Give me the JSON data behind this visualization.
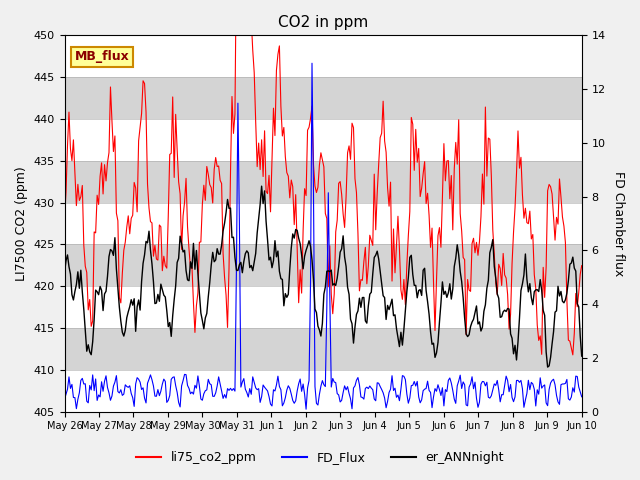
{
  "title": "CO2 in ppm",
  "ylabel_left": "LI7500 CO2 (ppm)",
  "ylabel_right": "FD Chamber flux",
  "ylim_left": [
    405,
    450
  ],
  "ylim_right": [
    0,
    14
  ],
  "yticks_left": [
    405,
    410,
    415,
    420,
    425,
    430,
    435,
    440,
    445,
    450
  ],
  "yticks_right": [
    0,
    2,
    4,
    6,
    8,
    10,
    12,
    14
  ],
  "xtick_labels": [
    "May 26",
    "May 27",
    "May 28",
    "May 29",
    "May 30",
    "May 31",
    "Jun 1",
    "Jun 2",
    "Jun 3",
    "Jun 4",
    "Jun 5",
    "Jun 6",
    "Jun 7",
    "Jun 8",
    "Jun 9",
    "Jun 10"
  ],
  "bg_color": "#f0f0f0",
  "plot_bg_color": "#e8e8e8",
  "line_colors": {
    "red": "#ff0000",
    "blue": "#0000ff",
    "black": "#000000"
  },
  "mb_flux_box": {
    "text": "MB_flux",
    "facecolor": "#ffff99",
    "edgecolor": "#cc8800"
  },
  "legend_entries": [
    "li75_co2_ppm",
    "FD_Flux",
    "er_ANNnight"
  ],
  "n_points": 350,
  "seed": 42
}
